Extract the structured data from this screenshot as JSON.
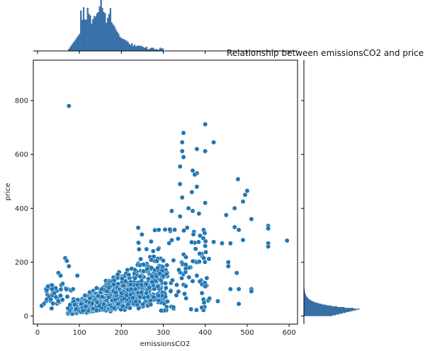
{
  "chart_data": {
    "type": "scatter",
    "title": "Relationship between emissionsCO2 and price",
    "xlabel": "emissionsCO2",
    "ylabel": "price",
    "xlim": [
      -10,
      620
    ],
    "ylim": [
      -30,
      950
    ],
    "xticks": [
      "0",
      "100",
      "200",
      "300",
      "400",
      "500",
      "600"
    ],
    "yticks": [
      "0",
      "200",
      "400",
      "600",
      "800"
    ],
    "grid": false,
    "marginals": {
      "x_histogram": true,
      "y_histogram": true
    },
    "colors": {
      "point": "#1f77b4",
      "point_edge": "#ffffff",
      "hist": "#3b75af",
      "hist_edge": "#2a5d8f"
    },
    "outlier_points": [
      {
        "x": 75,
        "y": 780
      },
      {
        "x": 400,
        "y": 712
      },
      {
        "x": 348,
        "y": 680
      },
      {
        "x": 345,
        "y": 645
      },
      {
        "x": 420,
        "y": 645
      },
      {
        "x": 380,
        "y": 620
      },
      {
        "x": 400,
        "y": 612
      },
      {
        "x": 345,
        "y": 612
      },
      {
        "x": 348,
        "y": 590
      },
      {
        "x": 340,
        "y": 555
      },
      {
        "x": 370,
        "y": 540
      },
      {
        "x": 380,
        "y": 530
      },
      {
        "x": 375,
        "y": 525
      },
      {
        "x": 478,
        "y": 508
      },
      {
        "x": 340,
        "y": 490
      },
      {
        "x": 380,
        "y": 480
      },
      {
        "x": 368,
        "y": 460
      },
      {
        "x": 500,
        "y": 465
      },
      {
        "x": 495,
        "y": 450
      },
      {
        "x": 345,
        "y": 440
      },
      {
        "x": 490,
        "y": 425
      },
      {
        "x": 400,
        "y": 420
      },
      {
        "x": 360,
        "y": 400
      },
      {
        "x": 470,
        "y": 400
      },
      {
        "x": 320,
        "y": 390
      },
      {
        "x": 370,
        "y": 390
      },
      {
        "x": 385,
        "y": 380
      },
      {
        "x": 450,
        "y": 375
      },
      {
        "x": 510,
        "y": 360
      },
      {
        "x": 340,
        "y": 370
      },
      {
        "x": 470,
        "y": 330
      },
      {
        "x": 480,
        "y": 320
      },
      {
        "x": 550,
        "y": 335
      },
      {
        "x": 550,
        "y": 325
      },
      {
        "x": 595,
        "y": 280
      },
      {
        "x": 550,
        "y": 270
      },
      {
        "x": 550,
        "y": 258
      },
      {
        "x": 490,
        "y": 282
      },
      {
        "x": 460,
        "y": 270
      },
      {
        "x": 440,
        "y": 270
      },
      {
        "x": 420,
        "y": 275
      },
      {
        "x": 400,
        "y": 260
      },
      {
        "x": 455,
        "y": 200
      },
      {
        "x": 455,
        "y": 185
      },
      {
        "x": 475,
        "y": 160
      },
      {
        "x": 460,
        "y": 100
      },
      {
        "x": 480,
        "y": 100
      },
      {
        "x": 510,
        "y": 100
      },
      {
        "x": 510,
        "y": 92
      },
      {
        "x": 410,
        "y": 65
      },
      {
        "x": 430,
        "y": 55
      },
      {
        "x": 480,
        "y": 45
      },
      {
        "x": 400,
        "y": 110
      },
      {
        "x": 380,
        "y": 150
      },
      {
        "x": 66,
        "y": 215
      },
      {
        "x": 70,
        "y": 205
      },
      {
        "x": 75,
        "y": 185
      },
      {
        "x": 50,
        "y": 160
      },
      {
        "x": 55,
        "y": 150
      },
      {
        "x": 35,
        "y": 100
      },
      {
        "x": 40,
        "y": 85
      },
      {
        "x": 25,
        "y": 110
      },
      {
        "x": 15,
        "y": 45
      },
      {
        "x": 10,
        "y": 38
      },
      {
        "x": 80,
        "y": 95
      },
      {
        "x": 85,
        "y": 100
      },
      {
        "x": 60,
        "y": 120
      },
      {
        "x": 95,
        "y": 150
      }
    ]
  }
}
